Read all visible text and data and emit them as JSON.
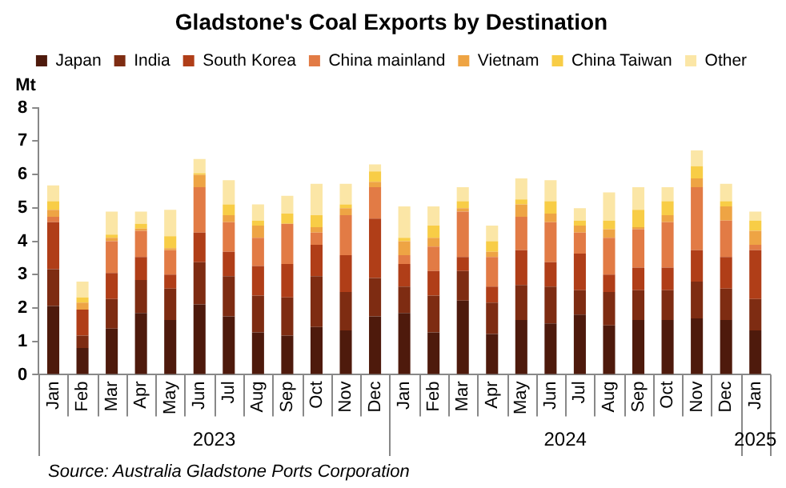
{
  "chart_data": {
    "type": "bar",
    "stacked": true,
    "title": "Gladstone's Coal Exports by Destination",
    "ylabel": "Mt",
    "categories": [
      "Jan",
      "Feb",
      "Mar",
      "Apr",
      "May",
      "Jun",
      "Jul",
      "Aug",
      "Sep",
      "Oct",
      "Nov",
      "Dec",
      "Jan",
      "Feb",
      "Mar",
      "Apr",
      "May",
      "Jun",
      "Jul",
      "Aug",
      "Sep",
      "Oct",
      "Nov",
      "Dec",
      "Jan"
    ],
    "series": [
      {
        "name": "Japan",
        "color": "#4e1a0c",
        "values": [
          2.06,
          0.8,
          1.38,
          1.85,
          1.64,
          2.11,
          1.75,
          1.27,
          1.17,
          1.43,
          1.33,
          1.75,
          1.85,
          1.27,
          2.22,
          1.22,
          1.64,
          1.54,
          1.8,
          1.48,
          1.64,
          1.64,
          1.69,
          1.64,
          1.33
        ]
      },
      {
        "name": "India",
        "color": "#7e2c12",
        "values": [
          1.1,
          0.37,
          0.89,
          0.99,
          0.94,
          1.26,
          1.2,
          1.1,
          1.15,
          1.52,
          1.15,
          1.15,
          0.79,
          1.1,
          0.89,
          0.94,
          1.05,
          1.1,
          0.73,
          1.0,
          0.89,
          0.89,
          1.1,
          0.94,
          0.94
        ]
      },
      {
        "name": "South Korea",
        "color": "#b03e18",
        "values": [
          1.41,
          0.78,
          0.78,
          0.69,
          0.42,
          0.89,
          0.73,
          0.89,
          1.0,
          0.94,
          1.1,
          1.78,
          0.68,
          0.74,
          0.42,
          0.48,
          1.04,
          0.73,
          1.1,
          0.52,
          0.68,
          0.68,
          0.94,
          0.95,
          1.46
        ]
      },
      {
        "name": "China mainland",
        "color": "#e27b45",
        "values": [
          0.16,
          0,
          0.95,
          0.78,
          0.73,
          1.36,
          0.89,
          0.84,
          1.2,
          0.37,
          1.2,
          0.94,
          0.26,
          0.73,
          1.36,
          0.89,
          1.0,
          1.2,
          0.63,
          1.1,
          1.15,
          1.36,
          1.89,
          1.09,
          0.16
        ]
      },
      {
        "name": "Vietnam",
        "color": "#eea444",
        "values": [
          0.21,
          0.21,
          0.1,
          0.07,
          0.06,
          0.37,
          0.21,
          0.37,
          0,
          0.16,
          0.21,
          0.16,
          0.42,
          0.26,
          0.1,
          0.15,
          0.37,
          0.26,
          0.21,
          0.26,
          0.06,
          0.21,
          0.26,
          0.42,
          0.42
        ]
      },
      {
        "name": "China Taiwan",
        "color": "#f8cd46",
        "values": [
          0.26,
          0.16,
          0.1,
          0.14,
          0.36,
          0.05,
          0.32,
          0.15,
          0.31,
          0.36,
          0.11,
          0.31,
          0.1,
          0.37,
          0.21,
          0.32,
          0.15,
          0.37,
          0.15,
          0.26,
          0.52,
          0.42,
          0.37,
          0.16,
          0.31
        ]
      },
      {
        "name": "Other",
        "color": "#fbe6a6",
        "values": [
          0.47,
          0.47,
          0.69,
          0.37,
          0.79,
          0.42,
          0.73,
          0.48,
          0.53,
          0.94,
          0.62,
          0.21,
          0.94,
          0.57,
          0.42,
          0.47,
          0.63,
          0.63,
          0.37,
          0.84,
          0.68,
          0.42,
          0.47,
          0.52,
          0.27
        ]
      }
    ],
    "ylim": [
      0,
      8
    ],
    "yticks": [
      0,
      1,
      2,
      3,
      4,
      5,
      6,
      7,
      8
    ],
    "grid": false,
    "legend": "top",
    "annotations": [
      "2023",
      "2024",
      "2025",
      "Source: Australia Gladstone Ports Corporation"
    ]
  }
}
